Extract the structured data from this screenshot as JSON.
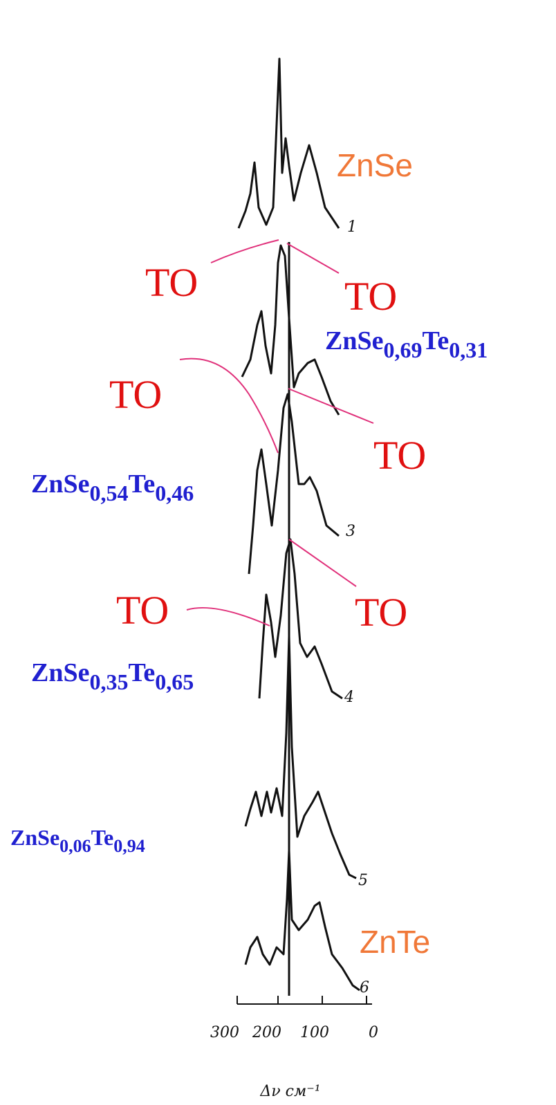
{
  "labels": {
    "top": "ZnSe",
    "bottom": "ZnTe"
  },
  "annotations": [
    "TO",
    "TO",
    "TO",
    "TO",
    "TO",
    "TO"
  ],
  "compositions": [
    {
      "a": "ZnSe",
      "x": "0,69",
      "b": "Te",
      "y": "0,31"
    },
    {
      "a": "ZnSe",
      "x": "0,54",
      "b": "Te",
      "y": "0,46"
    },
    {
      "a": "ZnSe",
      "x": "0,35",
      "b": "Te",
      "y": "0,65"
    },
    {
      "a": "ZnSe",
      "x": "0,06",
      "b": "Te",
      "y": "0,94"
    }
  ],
  "curve_numbers": [
    "1",
    "3",
    "4",
    "5",
    "6"
  ],
  "axis": {
    "ticks": [
      "300",
      "200",
      "100",
      "0"
    ],
    "label": "Δν см⁻¹"
  }
}
